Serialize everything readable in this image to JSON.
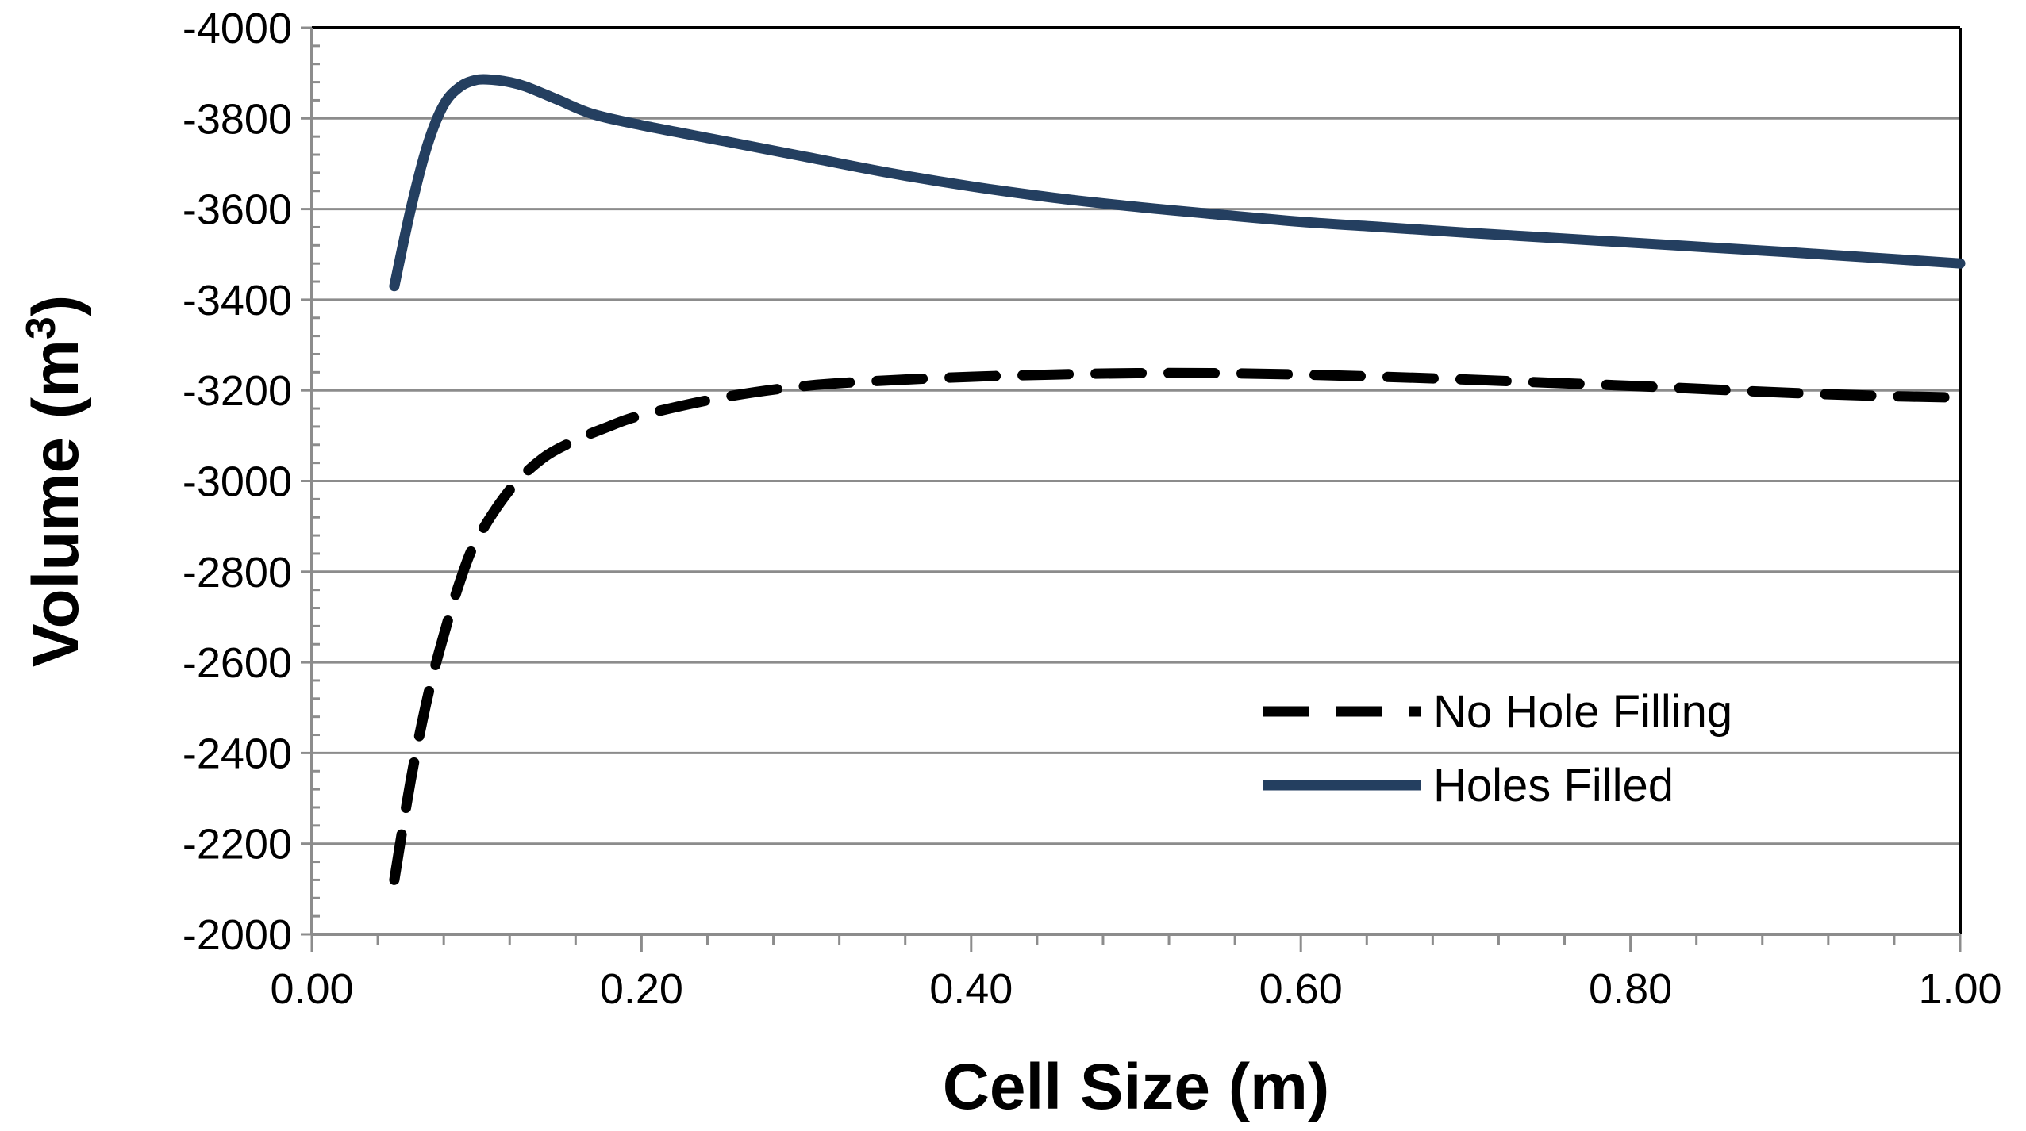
{
  "chart_data": {
    "type": "line",
    "title": "",
    "xlabel": "Cell Size (m)",
    "ylabel_main": "Volume (m",
    "ylabel_sup": "3",
    "ylabel_close": ")",
    "xlim": [
      0,
      1
    ],
    "ylim": [
      -2000,
      -4000
    ],
    "y_axis_reversed": true,
    "x_ticks": [
      "0.00",
      "0.20",
      "0.40",
      "0.60",
      "0.80",
      "1.00"
    ],
    "y_ticks": [
      "-4000",
      "-3800",
      "-3600",
      "-3400",
      "-3200",
      "-3000",
      "-2800",
      "-2600",
      "-2400",
      "-2200",
      "-2000"
    ],
    "grid": "horizontal",
    "legend_position": "lower-right",
    "series": [
      {
        "name": "No Hole Filling",
        "style": "dashed",
        "color": "#000000",
        "x": [
          0.05,
          0.06,
          0.07,
          0.08,
          0.09,
          0.1,
          0.12,
          0.14,
          0.16,
          0.18,
          0.2,
          0.25,
          0.3,
          0.35,
          0.4,
          0.45,
          0.5,
          0.55,
          0.6,
          0.65,
          0.7,
          0.75,
          0.8,
          0.85,
          0.9,
          0.95,
          1.0
        ],
        "y": [
          -2120,
          -2340,
          -2520,
          -2660,
          -2780,
          -2870,
          -2980,
          -3050,
          -3090,
          -3120,
          -3145,
          -3185,
          -3210,
          -3222,
          -3230,
          -3235,
          -3238,
          -3238,
          -3235,
          -3230,
          -3224,
          -3217,
          -3210,
          -3202,
          -3194,
          -3188,
          -3184
        ]
      },
      {
        "name": "Holes Filled",
        "style": "solid",
        "color": "#243f60",
        "x": [
          0.05,
          0.06,
          0.07,
          0.08,
          0.09,
          0.1,
          0.11,
          0.12,
          0.13,
          0.15,
          0.17,
          0.2,
          0.25,
          0.3,
          0.35,
          0.4,
          0.45,
          0.5,
          0.55,
          0.6,
          0.65,
          0.7,
          0.75,
          0.8,
          0.85,
          0.9,
          0.95,
          1.0
        ],
        "y": [
          -3430,
          -3600,
          -3740,
          -3830,
          -3870,
          -3885,
          -3885,
          -3880,
          -3870,
          -3840,
          -3810,
          -3785,
          -3750,
          -3715,
          -3680,
          -3650,
          -3625,
          -3605,
          -3588,
          -3572,
          -3560,
          -3548,
          -3537,
          -3526,
          -3515,
          -3504,
          -3492,
          -3480
        ]
      }
    ]
  }
}
